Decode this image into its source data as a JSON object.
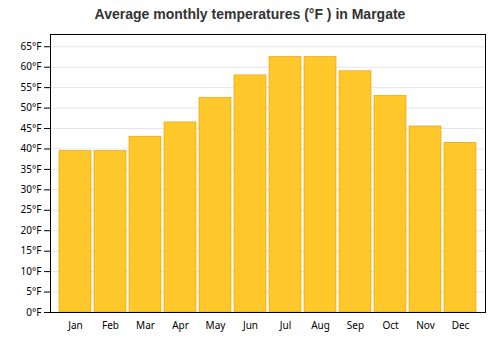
{
  "chart_data": {
    "type": "bar",
    "title": "Average monthly temperatures (°F ) in Margate",
    "categories": [
      "Jan",
      "Feb",
      "Mar",
      "Apr",
      "May",
      "Jun",
      "Jul",
      "Aug",
      "Sep",
      "Oct",
      "Nov",
      "Dec"
    ],
    "values": [
      39.5,
      39.5,
      43.0,
      46.5,
      52.5,
      58.0,
      62.5,
      62.5,
      59.0,
      53.0,
      45.5,
      41.5
    ],
    "color": "#FFC82A",
    "ylim": [
      0,
      68
    ],
    "yticks": [
      {
        "value": 0,
        "label": "0°F"
      },
      {
        "value": 5,
        "label": "5°F"
      },
      {
        "value": 10,
        "label": "10°F"
      },
      {
        "value": 15,
        "label": "15°F"
      },
      {
        "value": 20,
        "label": "20°F"
      },
      {
        "value": 25,
        "label": "25°F"
      },
      {
        "value": 30,
        "label": "30°F"
      },
      {
        "value": 35,
        "label": "35°F"
      },
      {
        "value": 40,
        "label": "40°F"
      },
      {
        "value": 45,
        "label": "45°F"
      },
      {
        "value": 50,
        "label": "50°F"
      },
      {
        "value": 55,
        "label": "55°F"
      },
      {
        "value": 60,
        "label": "60°F"
      },
      {
        "value": 65,
        "label": "65°F"
      }
    ],
    "grid": true
  }
}
